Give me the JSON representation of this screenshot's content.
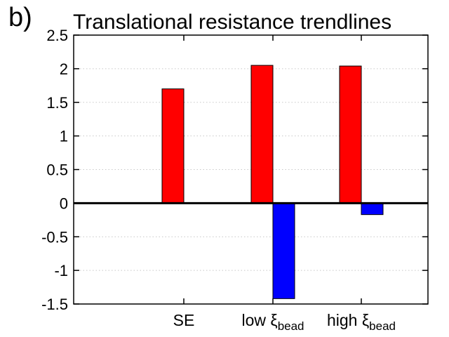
{
  "panel_label": "b)",
  "chart_data": {
    "type": "bar",
    "title": "Translational resistance trendlines",
    "xlabel": "",
    "ylabel": "",
    "categories": [
      {
        "main": "SE",
        "sub": ""
      },
      {
        "main": "low ξ",
        "sub": "bead"
      },
      {
        "main": "high ξ",
        "sub": "bead"
      }
    ],
    "series": [
      {
        "color": "#ff0000",
        "values": [
          1.7,
          2.05,
          2.04
        ]
      },
      {
        "color": "#0000ff",
        "values": [
          0,
          -1.42,
          -0.17
        ]
      }
    ],
    "ylim": [
      -1.5,
      2.5
    ],
    "yticks": [
      2.5,
      2,
      1.5,
      1,
      0.5,
      0,
      -0.5,
      -1,
      -1.5
    ],
    "ytick_labels": [
      "2.5",
      "2",
      "1.5",
      "1",
      "0.5",
      "0",
      "-0.5",
      "-1",
      "-1.5"
    ],
    "grid": true,
    "zero_line": true,
    "legend": "none"
  }
}
